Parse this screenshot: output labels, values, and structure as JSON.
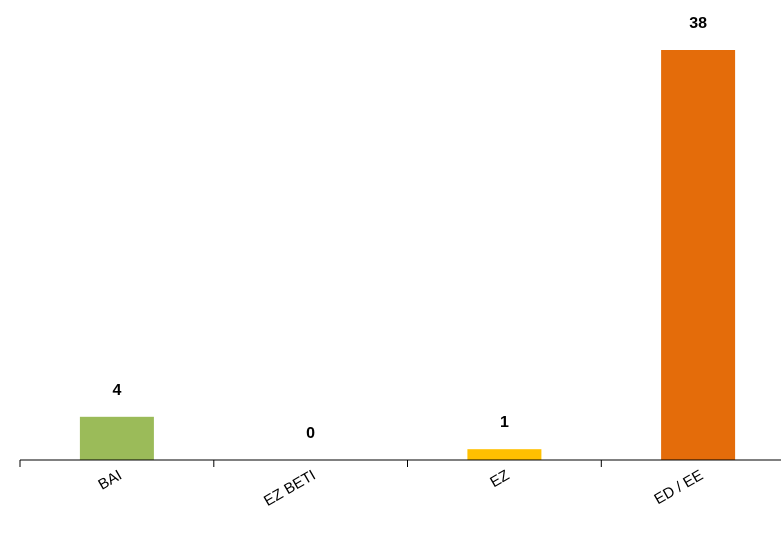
{
  "chart_data": {
    "type": "bar",
    "categories": [
      "BAI",
      "EZ BETI",
      "EZ",
      "ED / EE"
    ],
    "values": [
      4,
      0,
      1,
      38
    ],
    "data_labels": [
      "4",
      "0",
      "1",
      "38"
    ],
    "colors": [
      "#9BBB59",
      "#9BBB59",
      "#FFC000",
      "#E46C0A"
    ],
    "ylim": [
      0,
      38
    ],
    "grid": false,
    "legend": "none",
    "title": "",
    "xlabel": "",
    "ylabel": ""
  }
}
